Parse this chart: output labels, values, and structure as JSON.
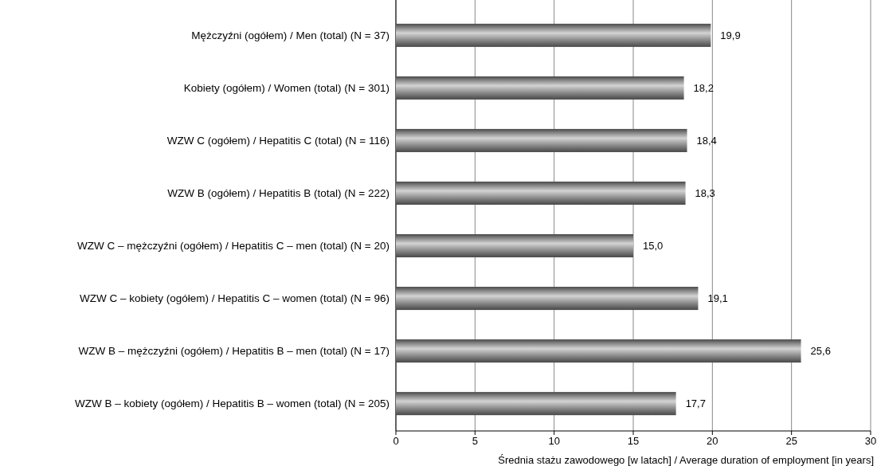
{
  "chart_data": {
    "type": "bar",
    "orientation": "horizontal",
    "xlabel": "Średnia stażu zawodowego [w latach] / Average duration of employment [in years]",
    "categories": [
      "Mężczyźni (ogółem) / Men (total) (N = 37)",
      "Kobiety (ogółem) / Women (total) (N = 301)",
      "WZW C (ogółem) / Hepatitis C (total) (N = 116)",
      "WZW B (ogółem) / Hepatitis B (total) (N = 222)",
      "WZW C – mężczyźni (ogółem) / Hepatitis C – men (total) (N = 20)",
      "WZW C – kobiety (ogółem) / Hepatitis C – women (total) (N = 96)",
      "WZW B – mężczyźni (ogółem) / Hepatitis B – men (total) (N = 17)",
      "WZW B – kobiety (ogółem) / Hepatitis B – women (total) (N = 205)"
    ],
    "values": [
      19.9,
      18.2,
      18.4,
      18.3,
      15.0,
      19.1,
      25.6,
      17.7
    ],
    "value_labels": [
      "19,9",
      "18,2",
      "18,4",
      "18,3",
      "15,0",
      "19,1",
      "25,6",
      "17,7"
    ],
    "color": "#808080",
    "xlim": [
      0,
      30
    ],
    "xticks": [
      0,
      5,
      10,
      15,
      20,
      25,
      30
    ],
    "grid": "x"
  }
}
